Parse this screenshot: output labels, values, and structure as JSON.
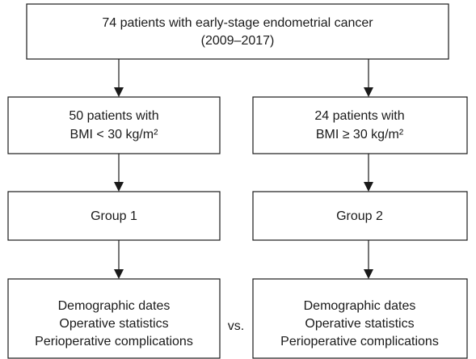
{
  "nodes": [
    {
      "lines": [
        "74 patients with early-stage endometrial cancer",
        "(2009–2017)"
      ]
    },
    {
      "lines": [
        "50 patients with",
        "BMI < 30 kg/m²"
      ]
    },
    {
      "lines": [
        "24 patients with",
        "BMI ≥ 30 kg/m²"
      ]
    },
    {
      "lines": [
        "Group 1"
      ]
    },
    {
      "lines": [
        "Group 2"
      ]
    },
    {
      "lines": [
        "Demographic dates",
        "Operative statistics",
        "Perioperative complications"
      ]
    },
    {
      "lines": [
        "Demographic dates",
        "Operative statistics",
        "Perioperative complications"
      ]
    }
  ],
  "comparison": "vs."
}
